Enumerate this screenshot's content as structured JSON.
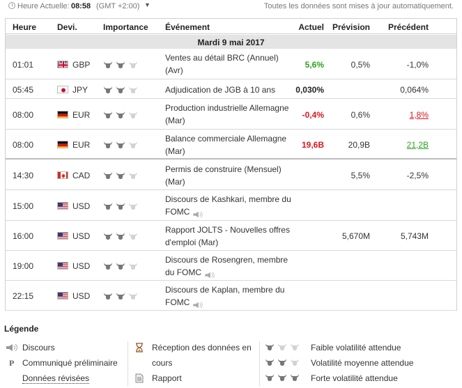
{
  "topbar": {
    "current_time_label": "Heure Actuelle:",
    "current_time": "08:58",
    "timezone": "(GMT +2:00)",
    "auto_update_note": "Toutes les données sont mises à jour automatiquement."
  },
  "table": {
    "headers": {
      "time": "Heure",
      "currency": "Devi.",
      "importance": "Importance",
      "event": "Événement",
      "actual": "Actuel",
      "forecast": "Prévision",
      "previous": "Précédent"
    },
    "day_label": "Mardi 9 mai 2017",
    "rows": [
      {
        "time": "01:01",
        "flag": "uk",
        "currency": "GBP",
        "importance": 2,
        "event": "Ventes au détail BRC (Annuel) (Avr)",
        "actual": "5,6%",
        "actual_state": "pos",
        "forecast": "0,5%",
        "previous": "-1,0%",
        "previous_state": ""
      },
      {
        "time": "05:45",
        "flag": "jp",
        "currency": "JPY",
        "importance": 2,
        "event": "Adjudication de JGB à 10 ans",
        "actual": "0,030%",
        "actual_state": "",
        "forecast": "",
        "previous": "0,064%",
        "previous_state": ""
      },
      {
        "time": "08:00",
        "flag": "de",
        "currency": "EUR",
        "importance": 2,
        "event": "Production industrielle Allemagne (Mar)",
        "actual": "-0,4%",
        "actual_state": "neg",
        "forecast": "0,6%",
        "previous": "1,8%",
        "previous_state": "neg"
      },
      {
        "time": "08:00",
        "flag": "de",
        "currency": "EUR",
        "importance": 2,
        "event": "Balance commerciale Allemagne (Mar)",
        "actual": "19,6B",
        "actual_state": "neg",
        "forecast": "20,9B",
        "previous": "21,2B",
        "previous_state": "pos"
      },
      {
        "time": "14:30",
        "flag": "ca",
        "currency": "CAD",
        "importance": 2,
        "event": "Permis de construire (Mensuel) (Mar)",
        "actual": "",
        "actual_state": "",
        "forecast": "5,5%",
        "previous": "-2,5%",
        "previous_state": ""
      },
      {
        "time": "15:00",
        "flag": "us",
        "currency": "USD",
        "importance": 2,
        "event": "Discours de Kashkari, membre du FOMC",
        "speaker": true,
        "actual": "",
        "actual_state": "",
        "forecast": "",
        "previous": "",
        "previous_state": ""
      },
      {
        "time": "16:00",
        "flag": "us",
        "currency": "USD",
        "importance": 2,
        "event": "Rapport JOLTS - Nouvelles offres d'emploi (Mar)",
        "actual": "",
        "actual_state": "",
        "forecast": "5,670M",
        "previous": "5,743M",
        "previous_state": ""
      },
      {
        "time": "19:00",
        "flag": "us",
        "currency": "USD",
        "importance": 2,
        "event": "Discours de Rosengren, membre du FOMC",
        "speaker": true,
        "actual": "",
        "actual_state": "",
        "forecast": "",
        "previous": "",
        "previous_state": ""
      },
      {
        "time": "22:15",
        "flag": "us",
        "currency": "USD",
        "importance": 2,
        "event": "Discours de Kaplan, membre du FOMC",
        "speaker": true,
        "actual": "",
        "actual_state": "",
        "forecast": "",
        "previous": "",
        "previous_state": ""
      }
    ]
  },
  "legend": {
    "title": "Légende",
    "speech": "Discours",
    "preliminary": "Communiqué préliminaire",
    "revised": "Données révisées",
    "receiving_line1": "Réception des données en",
    "receiving_line2": "cours",
    "report": "Rapport",
    "low_vol": "Faible volatilité attendue",
    "mid_vol": "Volatilité moyenne attendue",
    "high_vol": "Forte volatilité attendue",
    "preliminary_mark": "P"
  },
  "colors": {
    "positive": "#2aa21f",
    "negative": "#d8151d",
    "day_bar": "#e4e4e4",
    "bull_on": "#777777",
    "bull_off": "#d2d2d2"
  },
  "icons": [
    "clock-icon",
    "chevron-down-icon",
    "bull-icon",
    "speaker-icon",
    "hourglass-icon",
    "document-icon"
  ]
}
